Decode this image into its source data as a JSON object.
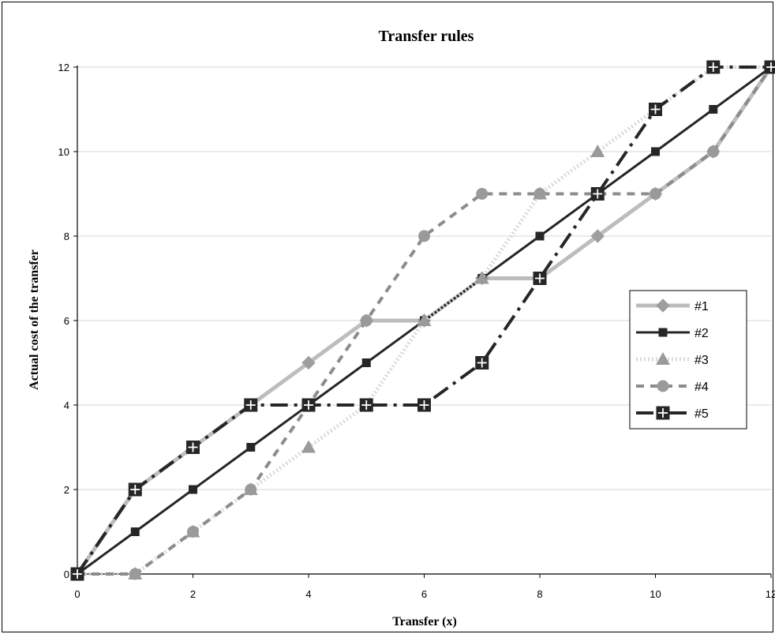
{
  "chart_data": {
    "type": "line",
    "title": "Transfer rules",
    "xlabel": "Transfer (x)",
    "ylabel": "Actual cost of the transfer",
    "xlim": [
      0,
      12
    ],
    "ylim": [
      0,
      12
    ],
    "x_ticks": [
      "0",
      "2",
      "4",
      "6",
      "8",
      "10",
      "12"
    ],
    "y_ticks": [
      "0",
      "2",
      "4",
      "6",
      "8",
      "10",
      "12"
    ],
    "grid": "horizontal",
    "legend_position": "right",
    "x": [
      0,
      1,
      2,
      3,
      4,
      5,
      6,
      7,
      8,
      9,
      10,
      11,
      12
    ],
    "series": [
      {
        "name": "#1",
        "values": [
          0,
          2,
          3,
          4,
          5,
          6,
          6,
          7,
          7,
          8,
          9,
          10,
          12
        ],
        "color": "#bdbdbd",
        "marker": "diamond",
        "dash": "solid"
      },
      {
        "name": "#2",
        "values": [
          0,
          1,
          2,
          3,
          4,
          5,
          6,
          7,
          8,
          9,
          10,
          11,
          12
        ],
        "color": "#262626",
        "marker": "square",
        "dash": "solid"
      },
      {
        "name": "#3",
        "values": [
          0,
          0,
          1,
          2,
          3,
          4,
          6,
          7,
          9,
          10,
          11,
          12,
          12
        ],
        "color": "#dadada",
        "marker": "triangle",
        "dash": "dotted"
      },
      {
        "name": "#4",
        "values": [
          0,
          0,
          1,
          2,
          4,
          6,
          8,
          9,
          9,
          9,
          9,
          10,
          12
        ],
        "color": "#8c8c8c",
        "marker": "circle",
        "dash": "dashed"
      },
      {
        "name": "#5",
        "values": [
          0,
          2,
          3,
          4,
          4,
          4,
          4,
          5,
          7,
          9,
          11,
          12,
          12
        ],
        "color": "#262626",
        "marker": "square-plus",
        "dash": "dashdot"
      }
    ]
  }
}
